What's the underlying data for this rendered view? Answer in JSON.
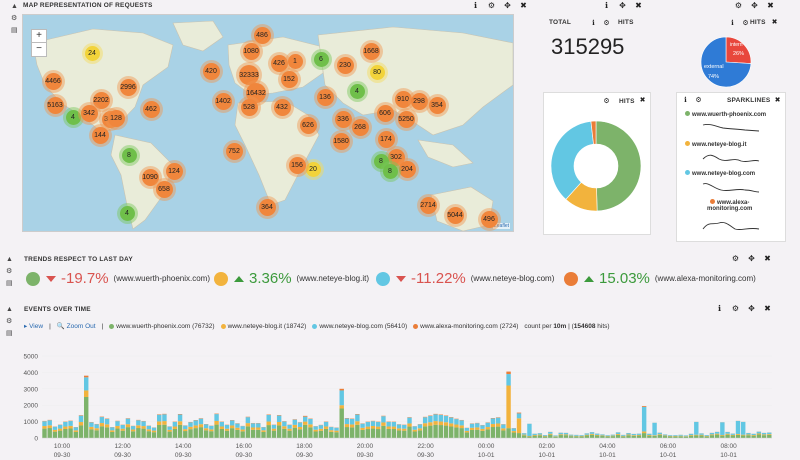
{
  "map_panel": {
    "title": "MAP REPRESENTATION OF REQUESTS",
    "zoom_in": "+",
    "zoom_out": "−",
    "attribution": "Leaflet",
    "clusters": [
      "24",
      "486",
      "1080",
      "1668",
      "426",
      "1",
      "6",
      "230",
      "80",
      "420",
      "32333",
      "152",
      "4466",
      "2996",
      "16432",
      "5163",
      "2202",
      "462",
      "4",
      "1402",
      "528",
      "432",
      "136",
      "910",
      "298",
      "354",
      "4",
      "342",
      "304",
      "128",
      "606",
      "5250",
      "144",
      "336",
      "268",
      "626",
      "174",
      "1580",
      "8",
      "752",
      "302",
      "8",
      "20",
      "156",
      "124",
      "204",
      "1090",
      "658",
      "8",
      "2714",
      "364",
      "5044",
      "496",
      "4"
    ]
  },
  "total_panel": {
    "title": "TOTAL",
    "hits_label": "HITS",
    "value": "315295"
  },
  "pie_panel": {
    "hits_label": "HITS"
  },
  "small_pie_panel": {
    "hits_label": "HITS",
    "internal_label": "intern",
    "internal_pct": "26%",
    "external_label": "external",
    "external_pct": "74%"
  },
  "sparklines_panel": {
    "title": "SPARKLINES",
    "items": [
      {
        "label": "www.wuerth-phoenix.com",
        "color": "#7db36a"
      },
      {
        "label": "www.neteye-blog.it",
        "color": "#f2b33d"
      },
      {
        "label": "www.neteye-blog.com",
        "color": "#62c7e3"
      },
      {
        "label": "www.alexa-",
        "label2": "monitoring.com",
        "color": "#ea7d38"
      }
    ]
  },
  "trends_panel": {
    "title": "TRENDS RESPECT TO LAST DAY",
    "items": [
      {
        "value": "-19.7%",
        "site": "(www.wuerth-phoenix.com)",
        "color": "#7db36a",
        "direction": "down"
      },
      {
        "value": "3.36%",
        "site": "(www.neteye-blog.it)",
        "color": "#f2b33d",
        "direction": "up"
      },
      {
        "value": "-11.22%",
        "site": "(www.neteye-blog.com)",
        "color": "#62c7e3",
        "direction": "down"
      },
      {
        "value": "15.03%",
        "site": "(www.alexa-monitoring.com)",
        "color": "#ea7d38",
        "direction": "up"
      }
    ]
  },
  "events_panel": {
    "title": "EVENTS OVER TIME",
    "view_link": "View",
    "zoom_out_link": "Zoom Out",
    "legend": [
      {
        "label": "www.wuerth-phoenix.com (76732)",
        "color": "#7db36a"
      },
      {
        "label": "www.neteye-blog.it (18742)",
        "color": "#f2b33d"
      },
      {
        "label": "www.neteye-blog.com (56410)",
        "color": "#62c7e3"
      },
      {
        "label": "www.alexa-monitoring.com (2724)",
        "color": "#ea7d38"
      }
    ],
    "count_text_pre": "count per ",
    "interval": "10m",
    "count_text_mid": " | (",
    "hits": "154608",
    "count_text_post": " hits)"
  },
  "controls": {
    "info": "ℹ",
    "gear": "⚙",
    "move": "✥",
    "close": "✖",
    "side_up": "▲",
    "side_gear": "⚙",
    "side_table": "▤"
  },
  "chart_data": {
    "type": "bar",
    "stacked": true,
    "ylim": [
      0,
      5000
    ],
    "yticks": [
      "5000",
      "4000",
      "3000",
      "2000",
      "1000",
      "0"
    ],
    "xticks": [
      {
        "time": "10:00",
        "date": "09-30"
      },
      {
        "time": "12:00",
        "date": "09-30"
      },
      {
        "time": "14:00",
        "date": "09-30"
      },
      {
        "time": "16:00",
        "date": "09-30"
      },
      {
        "time": "18:00",
        "date": "09-30"
      },
      {
        "time": "20:00",
        "date": "09-30"
      },
      {
        "time": "22:00",
        "date": "09-30"
      },
      {
        "time": "00:00",
        "date": "10-01"
      },
      {
        "time": "02:00",
        "date": "10-01"
      },
      {
        "time": "04:00",
        "date": "10-01"
      },
      {
        "time": "06:00",
        "date": "10-01"
      },
      {
        "time": "08:00",
        "date": "10-01"
      }
    ],
    "series_colors": [
      "#7db36a",
      "#f2b33d",
      "#62c7e3",
      "#ea7d38"
    ],
    "pie": [
      {
        "name": "www.wuerth-phoenix.com",
        "value": 49.6,
        "color": "#7db36a"
      },
      {
        "name": "www.neteye-blog.it",
        "value": 12.1,
        "color": "#f2b33d"
      },
      {
        "name": "www.neteye-blog.com",
        "value": 36.5,
        "color": "#62c7e3"
      },
      {
        "name": "www.alexa-monitoring.com",
        "value": 1.8,
        "color": "#ea7d38"
      }
    ],
    "small_pie": [
      {
        "name": "internal",
        "value": 26,
        "color": "#e8473c"
      },
      {
        "name": "external",
        "value": 74,
        "color": "#2f7bd6"
      }
    ]
  }
}
